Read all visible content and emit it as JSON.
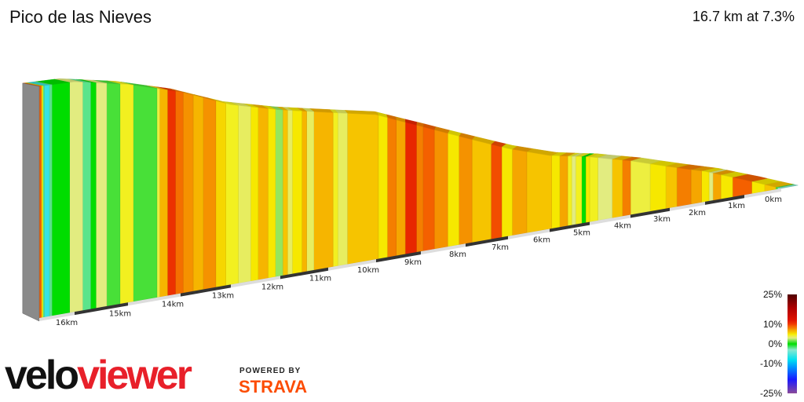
{
  "header": {
    "title": "Pico de las Nieves",
    "summary": "16.7 km at 7.3%"
  },
  "chart_data": {
    "type": "area",
    "title": "Pico de las Nieves",
    "total_distance_km": 16.7,
    "average_gradient_pct": 7.3,
    "x_ticks": [
      "0km",
      "1km",
      "2km",
      "3km",
      "4km",
      "5km",
      "6km",
      "7km",
      "8km",
      "9km",
      "10km",
      "11km",
      "12km",
      "13km",
      "14km",
      "15km",
      "16km"
    ],
    "elevation_profile": {
      "km": [
        0,
        1,
        2,
        3,
        4,
        5,
        6,
        7,
        8,
        9,
        10,
        11,
        12,
        13,
        14,
        15,
        16,
        16.7
      ],
      "relative_elevation_m": [
        0,
        110,
        215,
        285,
        365,
        430,
        475,
        555,
        655,
        760,
        860,
        905,
        950,
        1010,
        1110,
        1180,
        1222,
        1215
      ]
    },
    "segments": [
      [
        0.1,
        -3
      ],
      [
        0.15,
        1
      ],
      [
        0.45,
        6
      ],
      [
        0.8,
        5
      ],
      [
        1.3,
        9
      ],
      [
        1.6,
        5
      ],
      [
        1.8,
        7
      ],
      [
        1.9,
        3
      ],
      [
        2.1,
        5
      ],
      [
        2.4,
        7
      ],
      [
        2.8,
        8
      ],
      [
        3.1,
        6
      ],
      [
        3.5,
        5
      ],
      [
        4.0,
        4
      ],
      [
        4.2,
        8
      ],
      [
        4.45,
        6
      ],
      [
        4.8,
        3
      ],
      [
        5.0,
        4.5
      ],
      [
        5.1,
        5
      ],
      [
        5.2,
        0
      ],
      [
        5.35,
        4.5
      ],
      [
        5.45,
        3
      ],
      [
        5.55,
        4.5
      ],
      [
        5.75,
        7
      ],
      [
        5.95,
        5
      ],
      [
        6.55,
        6
      ],
      [
        6.9,
        7
      ],
      [
        7.15,
        5
      ],
      [
        7.4,
        9.5
      ],
      [
        7.85,
        6
      ],
      [
        8.15,
        7.5
      ],
      [
        8.4,
        5
      ],
      [
        8.7,
        7.5
      ],
      [
        8.95,
        9
      ],
      [
        9.1,
        8
      ],
      [
        9.35,
        11
      ],
      [
        9.55,
        7
      ],
      [
        9.75,
        8
      ],
      [
        9.95,
        5
      ],
      [
        10.6,
        6
      ],
      [
        10.8,
        3.5
      ],
      [
        10.9,
        4.5
      ],
      [
        11.3,
        6.5
      ],
      [
        11.45,
        3.5
      ],
      [
        11.55,
        6.5
      ],
      [
        11.75,
        5
      ],
      [
        11.85,
        3.5
      ],
      [
        11.95,
        6
      ],
      [
        12.1,
        2
      ],
      [
        12.25,
        5
      ],
      [
        12.45,
        6.5
      ],
      [
        12.6,
        5
      ],
      [
        12.85,
        3.5
      ],
      [
        13.1,
        4.5
      ],
      [
        13.3,
        5.5
      ],
      [
        13.55,
        7.5
      ],
      [
        13.75,
        6.5
      ],
      [
        13.95,
        7.5
      ],
      [
        14.1,
        8.5
      ],
      [
        14.25,
        10.5
      ],
      [
        14.4,
        6.5
      ],
      [
        14.45,
        4
      ],
      [
        14.9,
        1
      ],
      [
        15.15,
        4.5
      ],
      [
        15.4,
        1
      ],
      [
        15.6,
        3
      ],
      [
        15.7,
        0
      ],
      [
        15.85,
        -2
      ],
      [
        16.1,
        3
      ],
      [
        16.45,
        0
      ],
      [
        16.5,
        -2
      ],
      [
        16.6,
        -6
      ],
      [
        16.63,
        -2
      ],
      [
        16.66,
        5
      ],
      [
        16.7,
        9
      ]
    ],
    "legend": {
      "labels": [
        "25%",
        "10%",
        "0%",
        "-10%",
        "-25%"
      ],
      "values": [
        25,
        10,
        0,
        -10,
        -25
      ],
      "color_stops": [
        [
          -25,
          "#8a4a9a"
        ],
        [
          -18,
          "#1a1aff"
        ],
        [
          -12,
          "#0090ff"
        ],
        [
          -8,
          "#00e0f0"
        ],
        [
          -3,
          "#88e8d0"
        ],
        [
          0,
          "#00dd00"
        ],
        [
          1,
          "#48e038"
        ],
        [
          3,
          "#e2ec80"
        ],
        [
          4.5,
          "#f2f020"
        ],
        [
          5,
          "#f6e800"
        ],
        [
          6,
          "#f6c400"
        ],
        [
          7,
          "#f5a600"
        ],
        [
          8,
          "#f47e00"
        ],
        [
          9,
          "#f46000"
        ],
        [
          10,
          "#f03a00"
        ],
        [
          12,
          "#e01400"
        ],
        [
          18,
          "#b00000"
        ],
        [
          25,
          "#500000"
        ]
      ]
    },
    "ground_colors": {
      "dark": "#333333",
      "light": "#dddddd"
    },
    "end_face_color": "#8a8a8a"
  },
  "branding": {
    "logo_velo": "velo",
    "logo_viewer": "viewer",
    "powered_by": "POWERED BY",
    "strava": "STRAVA"
  }
}
